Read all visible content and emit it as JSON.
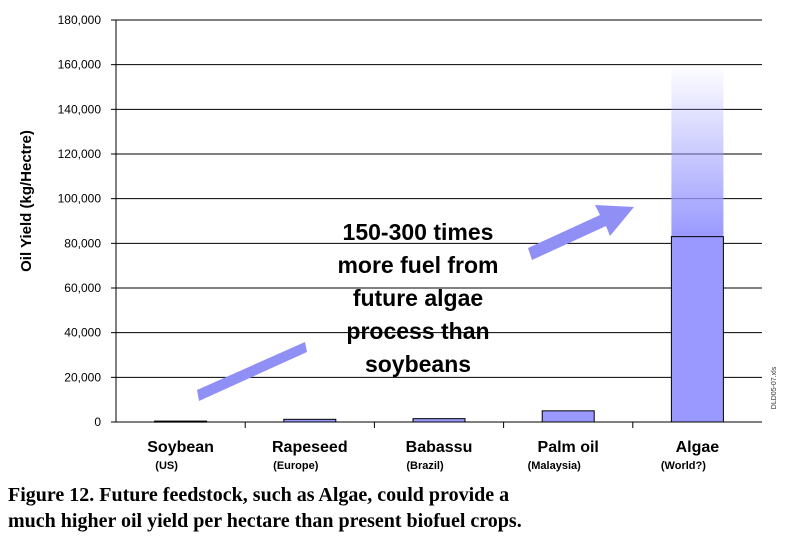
{
  "chart_data": {
    "type": "bar",
    "ylabel": "Oil Yield (kg/Hectre)",
    "ylim": [
      0,
      180000
    ],
    "yticks": [
      0,
      20000,
      40000,
      60000,
      80000,
      100000,
      120000,
      140000,
      160000,
      180000
    ],
    "ytick_labels": [
      "0",
      "20,000",
      "40,000",
      "60,000",
      "80,000",
      "100,000",
      "120,000",
      "140,000",
      "160,000",
      "180,000"
    ],
    "grid": true,
    "categories": [
      "Soybean",
      "Rapeseed",
      "Babassu",
      "Palm oil",
      "Algae"
    ],
    "category_sublabels": [
      "(US)",
      "(Europe)",
      "(Brazil)",
      "(Malaysia)",
      "(World?)"
    ],
    "values": [
      400,
      1200,
      1500,
      5000,
      83000
    ],
    "algae_projected_range": [
      83000,
      160000
    ],
    "annotation_lines": [
      "150-300 times",
      "more fuel from",
      "future algae",
      "process than",
      "soybeans"
    ],
    "side_note": "DLD05-07.xls",
    "colors": {
      "bar": "#9999ff",
      "arrow": "#8f8ff5",
      "grid": "#000000"
    }
  },
  "caption": {
    "line1": "Figure 12.  Future feedstock, such as Algae, could provide a",
    "line2": "much higher oil yield per hectare than present biofuel crops."
  }
}
